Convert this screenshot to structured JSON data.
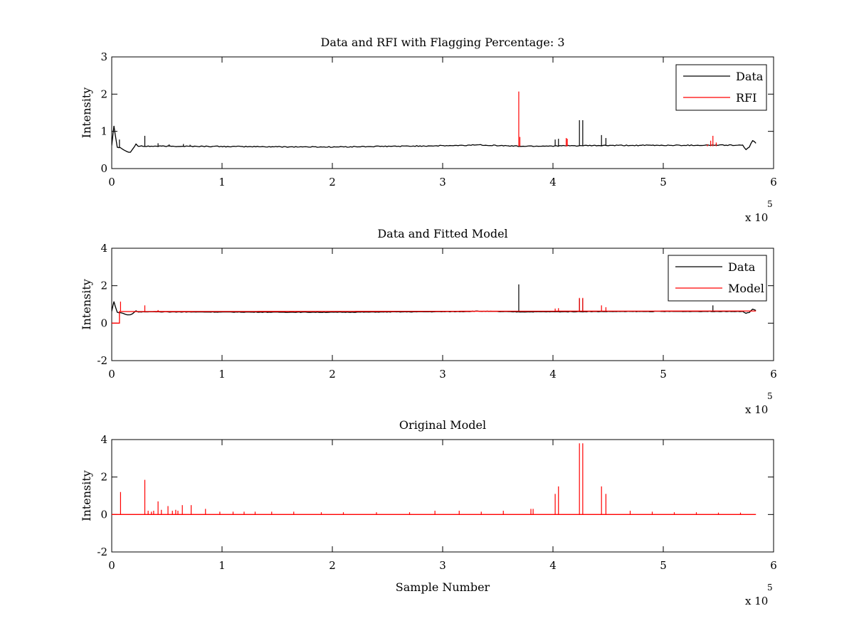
{
  "colors": {
    "data": "#000000",
    "rfi": "#ff0000",
    "model": "#ff0000"
  },
  "xaxis": {
    "ticks": [
      0,
      1,
      2,
      3,
      4,
      5,
      6
    ],
    "multiplier": "x 10",
    "exponent": "5",
    "xlim": [
      0,
      600000
    ],
    "label": "Sample Number"
  },
  "chart_data": [
    {
      "type": "line",
      "title": "Data and RFI with Flagging Percentage: 3",
      "xlabel": "",
      "ylabel": "Intensity",
      "xlim": [
        0,
        600000
      ],
      "ylim": [
        0,
        3
      ],
      "yticks": [
        0,
        1,
        2,
        3
      ],
      "legend": "top-right",
      "series": [
        {
          "name": "Data",
          "color": "#000000",
          "baseline": [
            [
              0,
              0.62
            ],
            [
              1000,
              0.9
            ],
            [
              2000,
              1.15
            ],
            [
              3000,
              0.95
            ],
            [
              5000,
              0.58
            ],
            [
              9000,
              0.55
            ],
            [
              14000,
              0.45
            ],
            [
              17000,
              0.44
            ],
            [
              19000,
              0.52
            ],
            [
              22000,
              0.66
            ],
            [
              24000,
              0.6
            ],
            [
              60000,
              0.6
            ],
            [
              120000,
              0.59
            ],
            [
              200000,
              0.58
            ],
            [
              320000,
              0.62
            ],
            [
              330000,
              0.64
            ],
            [
              370000,
              0.6
            ],
            [
              450000,
              0.62
            ],
            [
              560000,
              0.63
            ],
            [
              572000,
              0.62
            ],
            [
              575000,
              0.52
            ],
            [
              578000,
              0.58
            ],
            [
              581000,
              0.75
            ],
            [
              584000,
              0.68
            ]
          ],
          "spikes": [
            [
              7000,
              0.78
            ],
            [
              30000,
              0.88
            ],
            [
              42000,
              0.68
            ],
            [
              52000,
              0.65
            ],
            [
              65000,
              0.66
            ],
            [
              71000,
              0.64
            ],
            [
              402000,
              0.78
            ],
            [
              405000,
              0.8
            ],
            [
              424000,
              1.3
            ],
            [
              427000,
              1.3
            ],
            [
              444000,
              0.9
            ],
            [
              448000,
              0.82
            ]
          ]
        },
        {
          "name": "RFI",
          "color": "#ff0000",
          "spikes": [
            [
              369000,
              2.07
            ],
            [
              370000,
              0.85
            ],
            [
              412000,
              0.82
            ],
            [
              413000,
              0.8
            ],
            [
              543000,
              0.75
            ],
            [
              545000,
              0.88
            ],
            [
              540000,
              0.65
            ],
            [
              548000,
              0.7
            ]
          ]
        }
      ]
    },
    {
      "type": "line",
      "title": "Data and Fitted Model",
      "xlabel": "",
      "ylabel": "Intensity",
      "xlim": [
        0,
        600000
      ],
      "ylim": [
        -2,
        4
      ],
      "yticks": [
        -2,
        0,
        2,
        4
      ],
      "legend": "top-right",
      "series": [
        {
          "name": "Data",
          "color": "#000000",
          "baseline": [
            [
              0,
              0.62
            ],
            [
              1000,
              0.9
            ],
            [
              2000,
              1.15
            ],
            [
              3000,
              0.95
            ],
            [
              5000,
              0.58
            ],
            [
              9000,
              0.55
            ],
            [
              14000,
              0.45
            ],
            [
              17000,
              0.44
            ],
            [
              19000,
              0.52
            ],
            [
              22000,
              0.66
            ],
            [
              24000,
              0.6
            ],
            [
              60000,
              0.6
            ],
            [
              120000,
              0.59
            ],
            [
              200000,
              0.58
            ],
            [
              320000,
              0.62
            ],
            [
              330000,
              0.64
            ],
            [
              370000,
              0.6
            ],
            [
              450000,
              0.62
            ],
            [
              560000,
              0.63
            ],
            [
              572000,
              0.62
            ],
            [
              575000,
              0.52
            ],
            [
              578000,
              0.58
            ],
            [
              581000,
              0.75
            ],
            [
              584000,
              0.68
            ]
          ],
          "spikes": [
            [
              369000,
              2.07
            ],
            [
              424000,
              1.3
            ],
            [
              427000,
              1.3
            ],
            [
              545000,
              0.95
            ]
          ]
        },
        {
          "name": "Model",
          "color": "#ff0000",
          "baseline": [
            [
              0,
              0.0
            ],
            [
              7000,
              0.0
            ],
            [
              7001,
              0.62
            ],
            [
              584000,
              0.65
            ]
          ],
          "spikes": [
            [
              8000,
              1.15
            ],
            [
              30000,
              0.95
            ],
            [
              42000,
              0.7
            ],
            [
              402000,
              0.78
            ],
            [
              405000,
              0.8
            ],
            [
              424000,
              1.35
            ],
            [
              427000,
              1.35
            ],
            [
              444000,
              0.95
            ],
            [
              448000,
              0.85
            ]
          ]
        }
      ]
    },
    {
      "type": "line",
      "title": "Original Model",
      "xlabel": "Sample Number",
      "ylabel": "Intensity",
      "xlim": [
        0,
        600000
      ],
      "ylim": [
        -2,
        4
      ],
      "yticks": [
        -2,
        0,
        2,
        4
      ],
      "legend": "none",
      "series": [
        {
          "name": "",
          "color": "#ff0000",
          "baseline": [
            [
              0,
              0
            ],
            [
              584000,
              0
            ]
          ],
          "spikes": [
            [
              8000,
              1.2
            ],
            [
              30000,
              1.85
            ],
            [
              33000,
              0.2
            ],
            [
              36000,
              0.15
            ],
            [
              38000,
              0.2
            ],
            [
              42000,
              0.7
            ],
            [
              45000,
              0.25
            ],
            [
              51000,
              0.45
            ],
            [
              55000,
              0.2
            ],
            [
              58000,
              0.25
            ],
            [
              60000,
              0.2
            ],
            [
              64000,
              0.5
            ],
            [
              72000,
              0.5
            ],
            [
              85000,
              0.3
            ],
            [
              98000,
              0.15
            ],
            [
              110000,
              0.15
            ],
            [
              120000,
              0.15
            ],
            [
              130000,
              0.15
            ],
            [
              145000,
              0.15
            ],
            [
              165000,
              0.15
            ],
            [
              190000,
              0.12
            ],
            [
              210000,
              0.12
            ],
            [
              240000,
              0.12
            ],
            [
              270000,
              0.12
            ],
            [
              293000,
              0.2
            ],
            [
              315000,
              0.2
            ],
            [
              335000,
              0.15
            ],
            [
              355000,
              0.2
            ],
            [
              380000,
              0.3
            ],
            [
              382000,
              0.3
            ],
            [
              402000,
              1.1
            ],
            [
              405000,
              1.5
            ],
            [
              424000,
              3.8
            ],
            [
              427000,
              3.8
            ],
            [
              444000,
              1.5
            ],
            [
              448000,
              1.1
            ],
            [
              470000,
              0.2
            ],
            [
              490000,
              0.15
            ],
            [
              510000,
              0.12
            ],
            [
              530000,
              0.12
            ],
            [
              550000,
              0.1
            ],
            [
              570000,
              0.1
            ]
          ]
        }
      ]
    }
  ]
}
